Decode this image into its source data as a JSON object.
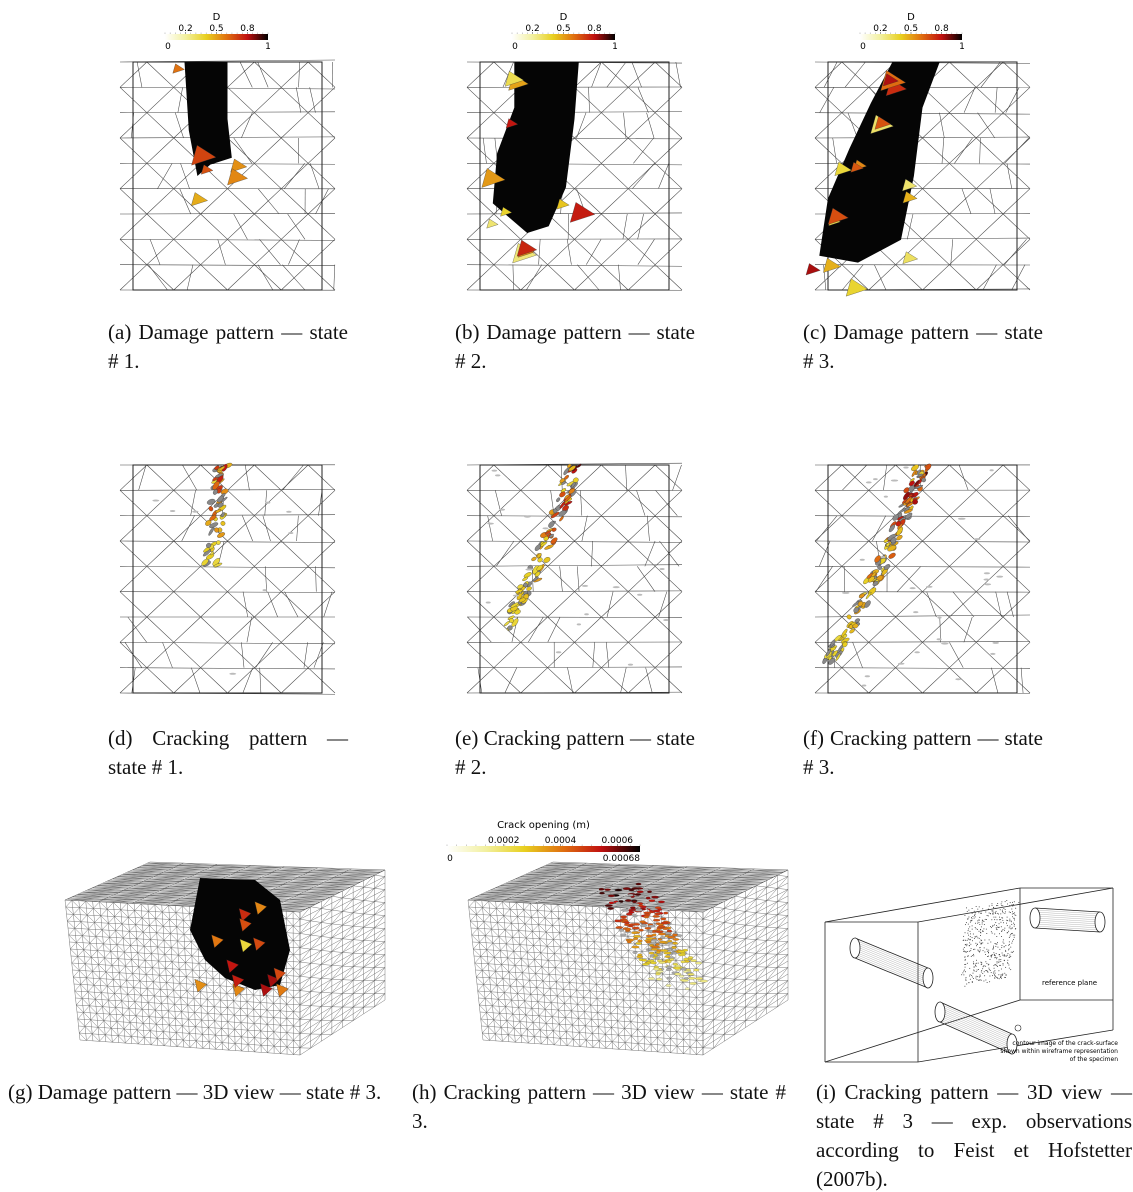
{
  "damage_colorbar": {
    "title": "D",
    "min": 0,
    "max": 1,
    "ticks": [
      0.2,
      0.5,
      0.8
    ]
  },
  "crack_colorbar": {
    "title": "Crack opening (m)",
    "min": 0,
    "max": 0.00068,
    "ticks": [
      0.0002,
      0.0004,
      0.0006
    ]
  },
  "panels": [
    {
      "caption": "(a) Damage pattern — state # 1."
    },
    {
      "caption": "(b) Damage pattern — state # 2."
    },
    {
      "caption": "(c) Damage pattern — state # 3."
    },
    {
      "caption": "(d) Cracking pattern — state # 1."
    },
    {
      "caption": "(e) Cracking pattern — state # 2."
    },
    {
      "caption": "(f) Cracking pattern — state # 3."
    },
    {
      "caption": "(g) Damage pattern — 3D view — state # 3."
    },
    {
      "caption": "(h) Cracking pattern — 3D view — state # 3."
    },
    {
      "caption": "(i) Cracking pattern — 3D view — state # 3 — exp. observations according to Feist et Hofstetter (2007b)."
    }
  ],
  "experiment_annotations": {
    "reference_plane": "reference plane",
    "contour_note": [
      "contour image of the crack-surface",
      "shown within wireframe representation",
      "of the specimen"
    ]
  }
}
